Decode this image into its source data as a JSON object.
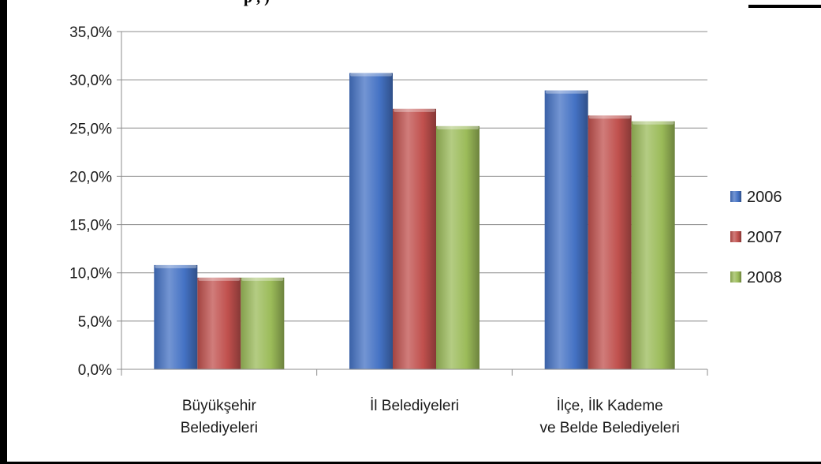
{
  "title_fragment": "p                                    ,                     )",
  "chart_data": {
    "type": "bar",
    "categories": [
      [
        "Büyükşehir",
        "Belediyeleri"
      ],
      [
        "İl Belediyeleri"
      ],
      [
        "İlçe, İlk Kademe",
        "ve Belde Belediyeleri"
      ]
    ],
    "series": [
      {
        "name": "2006",
        "color": "#4472c4",
        "values": [
          10.8,
          30.7,
          28.9
        ]
      },
      {
        "name": "2007",
        "color": "#c0504d",
        "values": [
          9.5,
          27.0,
          26.3
        ]
      },
      {
        "name": "2008",
        "color": "#9bbb59",
        "values": [
          9.5,
          25.2,
          25.7
        ]
      }
    ],
    "ylim": [
      0,
      35
    ],
    "yticks": [
      "0,0%",
      "5,0%",
      "10,0%",
      "15,0%",
      "20,0%",
      "25,0%",
      "30,0%",
      "35,0%"
    ],
    "grid": true,
    "legend_position": "right"
  }
}
